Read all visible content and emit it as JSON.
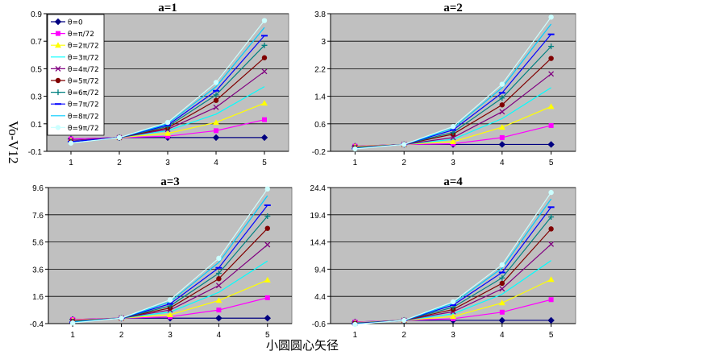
{
  "y_axis_label": "Vo-V12",
  "x_axis_label": "小圆圆心矢径",
  "legend": {
    "placement": "top-left inside first panel",
    "entries": [
      "θ=0",
      "θ=π/72",
      "θ=2π/72",
      "θ=3π/72",
      "θ=4π/72",
      "θ=5π/72",
      "θ=6π/72",
      "θ=7π/72",
      "θ=8π/72",
      "θ=9π/72"
    ]
  },
  "colors": {
    "plot_bg": "#c0c0c0",
    "series": [
      "#000080",
      "#ff00ff",
      "#ffff00",
      "#00ffff",
      "#800080",
      "#800000",
      "#008080",
      "#0000ff",
      "#00ccff",
      "#ccffff"
    ]
  },
  "chart_data": [
    {
      "type": "line",
      "title": "a=1",
      "x": [
        1,
        2,
        3,
        4,
        5
      ],
      "ylim": [
        -0.1,
        0.9
      ],
      "yticks": [
        "-0.1",
        "0.1",
        "0.3",
        "0.5",
        "0.7",
        "0.9"
      ],
      "grid": true,
      "series": [
        {
          "name": "θ=0",
          "values": [
            -0.01,
            0.0,
            0.0,
            0.0,
            0.0
          ]
        },
        {
          "name": "θ=π/72",
          "values": [
            -0.01,
            0.0,
            0.01,
            0.05,
            0.13
          ]
        },
        {
          "name": "θ=2π/72",
          "values": [
            -0.02,
            0.0,
            0.03,
            0.11,
            0.25
          ]
        },
        {
          "name": "θ=3π/72",
          "values": [
            -0.02,
            0.0,
            0.05,
            0.17,
            0.37
          ]
        },
        {
          "name": "θ=4π/72",
          "values": [
            -0.02,
            0.0,
            0.06,
            0.22,
            0.48
          ]
        },
        {
          "name": "θ=5π/72",
          "values": [
            -0.03,
            0.0,
            0.07,
            0.27,
            0.58
          ]
        },
        {
          "name": "θ=6π/72",
          "values": [
            -0.03,
            0.0,
            0.08,
            0.31,
            0.67
          ]
        },
        {
          "name": "θ=7π/72",
          "values": [
            -0.03,
            0.0,
            0.09,
            0.34,
            0.74
          ]
        },
        {
          "name": "θ=8π/72",
          "values": [
            -0.04,
            0.0,
            0.1,
            0.37,
            0.8
          ]
        },
        {
          "name": "θ=9π/72",
          "values": [
            -0.04,
            0.0,
            0.11,
            0.4,
            0.85
          ]
        }
      ]
    },
    {
      "type": "line",
      "title": "a=2",
      "x": [
        1,
        2,
        3,
        4,
        5
      ],
      "ylim": [
        -0.2,
        3.8
      ],
      "yticks": [
        "-0.2",
        "0.6",
        "1.4",
        "2.2",
        "3",
        "3.8"
      ],
      "grid": true,
      "series": [
        {
          "name": "θ=0",
          "values": [
            -0.05,
            0.0,
            0.0,
            0.0,
            0.0
          ]
        },
        {
          "name": "θ=π/72",
          "values": [
            -0.05,
            0.0,
            0.02,
            0.2,
            0.55
          ]
        },
        {
          "name": "θ=2π/72",
          "values": [
            -0.06,
            0.0,
            0.08,
            0.5,
            1.1
          ]
        },
        {
          "name": "θ=3π/72",
          "values": [
            -0.08,
            0.0,
            0.15,
            0.75,
            1.65
          ]
        },
        {
          "name": "θ=4π/72",
          "values": [
            -0.08,
            0.0,
            0.2,
            0.95,
            2.05
          ]
        },
        {
          "name": "θ=5π/72",
          "values": [
            -0.1,
            0.0,
            0.3,
            1.15,
            2.5
          ]
        },
        {
          "name": "θ=6π/72",
          "values": [
            -0.1,
            0.0,
            0.35,
            1.35,
            2.85
          ]
        },
        {
          "name": "θ=7π/72",
          "values": [
            -0.12,
            0.0,
            0.42,
            1.5,
            3.2
          ]
        },
        {
          "name": "θ=8π/72",
          "values": [
            -0.12,
            0.0,
            0.47,
            1.65,
            3.5
          ]
        },
        {
          "name": "θ=9π/72",
          "values": [
            -0.13,
            0.0,
            0.52,
            1.75,
            3.7
          ]
        }
      ]
    },
    {
      "type": "line",
      "title": "a=3",
      "x": [
        1,
        2,
        3,
        4,
        5
      ],
      "ylim": [
        -0.4,
        9.6
      ],
      "yticks": [
        "-0.4",
        "1.6",
        "3.6",
        "5.6",
        "7.6",
        "9.6"
      ],
      "grid": true,
      "series": [
        {
          "name": "θ=0",
          "values": [
            -0.1,
            0.0,
            0.0,
            0.0,
            0.0
          ]
        },
        {
          "name": "θ=π/72",
          "values": [
            -0.1,
            0.0,
            0.1,
            0.6,
            1.5
          ]
        },
        {
          "name": "θ=2π/72",
          "values": [
            -0.15,
            0.0,
            0.25,
            1.3,
            2.8
          ]
        },
        {
          "name": "θ=3π/72",
          "values": [
            -0.2,
            0.0,
            0.45,
            1.9,
            4.2
          ]
        },
        {
          "name": "θ=4π/72",
          "values": [
            -0.2,
            0.0,
            0.6,
            2.4,
            5.4
          ]
        },
        {
          "name": "θ=5π/72",
          "values": [
            -0.25,
            0.0,
            0.75,
            2.9,
            6.6
          ]
        },
        {
          "name": "θ=6π/72",
          "values": [
            -0.25,
            0.0,
            0.9,
            3.3,
            7.5
          ]
        },
        {
          "name": "θ=7π/72",
          "values": [
            -0.3,
            0.0,
            1.05,
            3.7,
            8.3
          ]
        },
        {
          "name": "θ=8π/72",
          "values": [
            -0.3,
            0.0,
            1.2,
            4.1,
            9.0
          ]
        },
        {
          "name": "θ=9π/72",
          "values": [
            -0.35,
            0.0,
            1.35,
            4.4,
            9.5
          ]
        }
      ]
    },
    {
      "type": "line",
      "title": "a=4",
      "x": [
        1,
        2,
        3,
        4,
        5
      ],
      "ylim": [
        -0.6,
        24.4
      ],
      "yticks": [
        "-0.6",
        "4.4",
        "9.4",
        "14.4",
        "19.4",
        "24.4"
      ],
      "grid": true,
      "series": [
        {
          "name": "θ=0",
          "values": [
            -0.3,
            0.0,
            0.0,
            0.0,
            0.0
          ]
        },
        {
          "name": "θ=π/72",
          "values": [
            -0.3,
            0.0,
            0.3,
            1.5,
            3.8
          ]
        },
        {
          "name": "θ=2π/72",
          "values": [
            -0.4,
            0.0,
            0.7,
            3.2,
            7.5
          ]
        },
        {
          "name": "θ=3π/72",
          "values": [
            -0.45,
            0.0,
            1.2,
            4.8,
            11.0
          ]
        },
        {
          "name": "θ=4π/72",
          "values": [
            -0.5,
            0.0,
            1.6,
            5.8,
            14.0
          ]
        },
        {
          "name": "θ=5π/72",
          "values": [
            -0.55,
            0.0,
            2.0,
            6.8,
            16.8
          ]
        },
        {
          "name": "θ=6π/72",
          "values": [
            -0.6,
            0.0,
            2.4,
            7.8,
            19.0
          ]
        },
        {
          "name": "θ=7π/72",
          "values": [
            -0.65,
            0.0,
            2.8,
            8.8,
            20.8
          ]
        },
        {
          "name": "θ=8π/72",
          "values": [
            -0.7,
            0.0,
            3.1,
            9.6,
            22.3
          ]
        },
        {
          "name": "θ=9π/72",
          "values": [
            -0.75,
            0.0,
            3.4,
            10.2,
            23.5
          ]
        }
      ]
    }
  ]
}
